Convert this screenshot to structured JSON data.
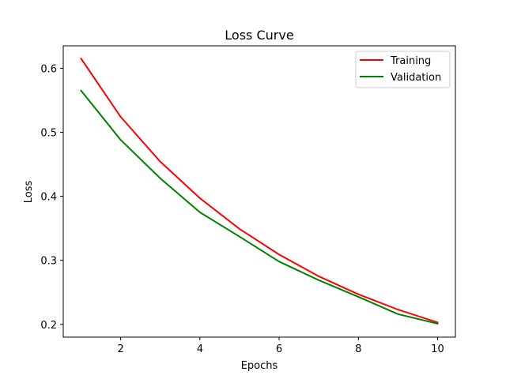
{
  "chart_data": {
    "type": "line",
    "title": "Loss Curve",
    "xlabel": "Epochs",
    "ylabel": "Loss",
    "x": [
      1,
      2,
      3,
      4,
      5,
      6,
      7,
      8,
      9,
      10
    ],
    "xlim": [
      0.55,
      10.45
    ],
    "ylim": [
      0.18,
      0.635
    ],
    "xticks": [
      2,
      4,
      6,
      8,
      10
    ],
    "yticks": [
      0.2,
      0.3,
      0.4,
      0.5,
      0.6
    ],
    "xtick_labels": [
      "2",
      "4",
      "6",
      "8",
      "10"
    ],
    "ytick_labels": [
      "0.2",
      "0.3",
      "0.4",
      "0.5",
      "0.6"
    ],
    "grid": false,
    "legend_position": "top-right",
    "series": [
      {
        "name": "Training",
        "color": "#ff0000",
        "values": [
          0.615,
          0.524,
          0.454,
          0.397,
          0.349,
          0.309,
          0.275,
          0.247,
          0.223,
          0.203
        ]
      },
      {
        "name": "Validation",
        "color": "#008000",
        "values": [
          0.565,
          0.488,
          0.428,
          0.375,
          0.337,
          0.298,
          0.269,
          0.243,
          0.216,
          0.201
        ]
      }
    ]
  }
}
